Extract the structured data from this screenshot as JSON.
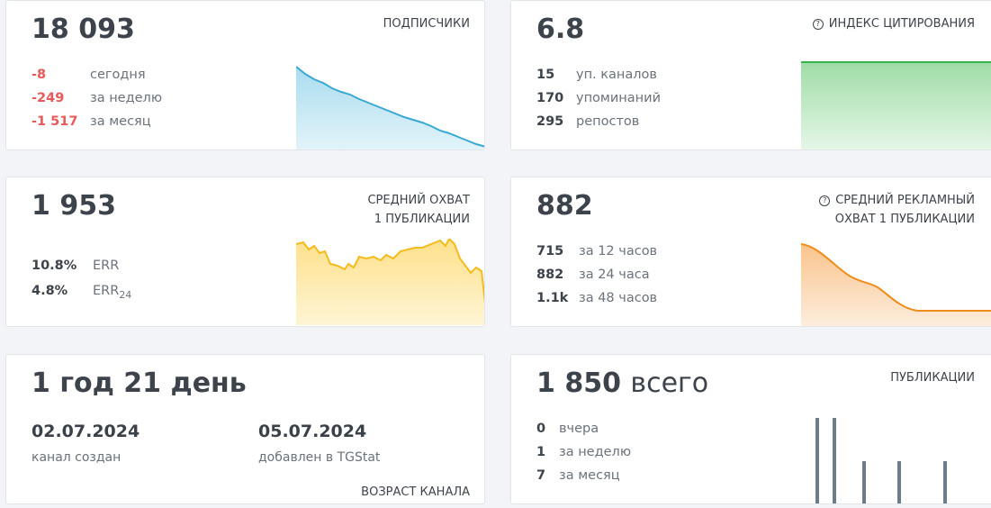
{
  "cards": [
    {
      "value": "18 093",
      "title": [
        "ПОДПИСЧИКИ"
      ],
      "stats": [
        {
          "num": "-8",
          "label": "сегодня"
        },
        {
          "num": "-249",
          "label": "за неделю"
        },
        {
          "num": "-1 517",
          "label": "за месяц"
        }
      ]
    },
    {
      "value": "6.8",
      "title": [
        "ИНДЕКС ЦИТИРОВАНИЯ"
      ],
      "stats": [
        {
          "num": "15",
          "label": "уп. каналов"
        },
        {
          "num": "170",
          "label": "упоминаний"
        },
        {
          "num": "295",
          "label": "репостов"
        }
      ]
    },
    {
      "value": "1 953",
      "title": [
        "СРЕДНИЙ ОХВАТ",
        "1 ПУБЛИКАЦИИ"
      ],
      "stats": [
        {
          "num": "10.8%",
          "label": "ERR"
        },
        {
          "num": "4.8%",
          "label": "ERR",
          "sub": "24"
        }
      ]
    },
    {
      "value": "882",
      "title": [
        "СРЕДНИЙ РЕКЛАМНЫЙ",
        "ОХВАТ 1 ПУБЛИКАЦИИ"
      ],
      "stats": [
        {
          "num": "715",
          "label": "за 12 часов"
        },
        {
          "num": "882",
          "label": "за 24 часа"
        },
        {
          "num": "1.1k",
          "label": "за 48 часов"
        }
      ]
    },
    {
      "value": "1 год 21 день",
      "title": [
        "ВОЗРАСТ КАНАЛА"
      ],
      "dates": [
        {
          "date": "02.07.2024",
          "label": "канал создан"
        },
        {
          "date": "05.07.2024",
          "label": "добавлен в TGStat"
        }
      ]
    },
    {
      "value": "1 850",
      "suffix": "всего",
      "title": [
        "ПУБЛИКАЦИИ"
      ],
      "stats": [
        {
          "num": "0",
          "label": "вчера"
        },
        {
          "num": "1",
          "label": "за неделю"
        },
        {
          "num": "7",
          "label": "за месяц"
        }
      ]
    }
  ]
}
